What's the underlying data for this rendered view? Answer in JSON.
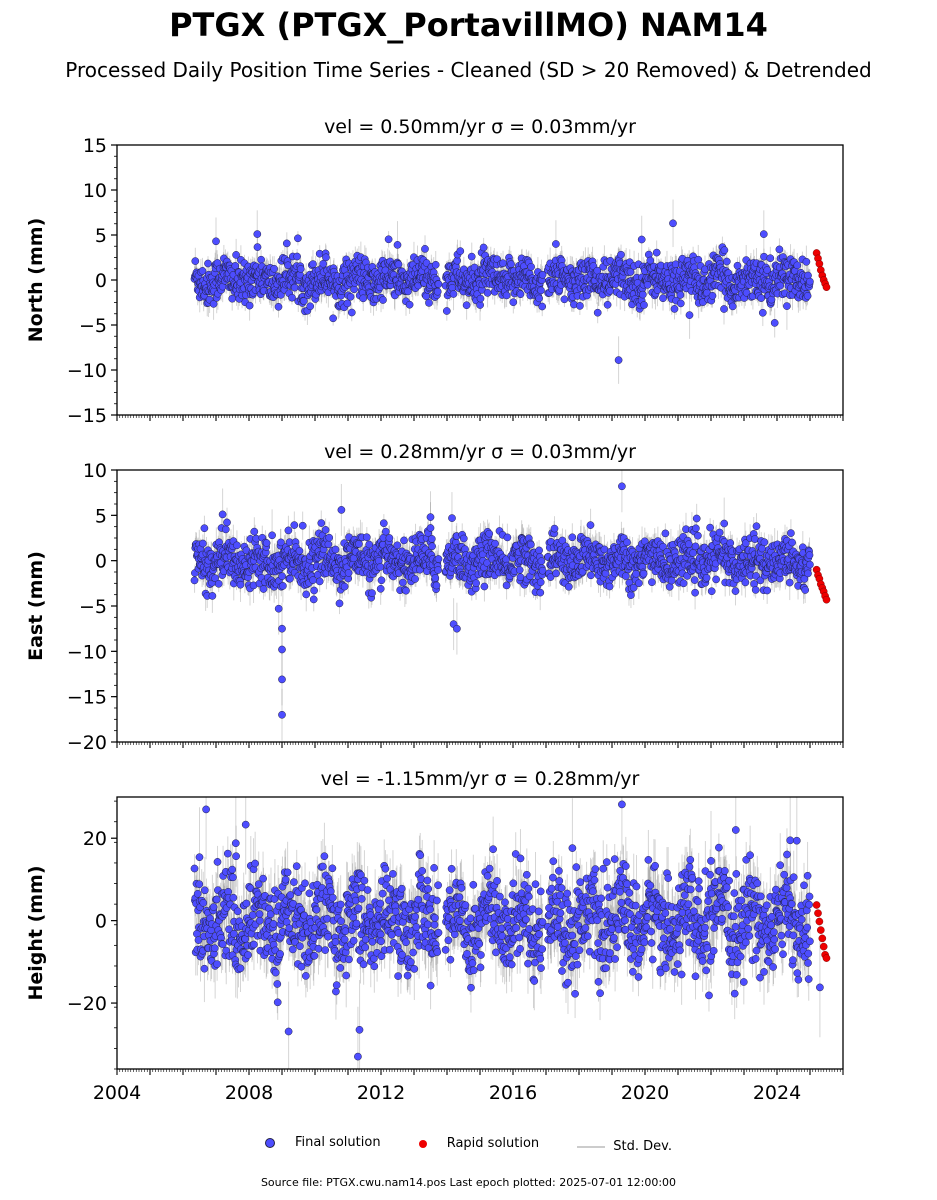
{
  "title": "PTGX (PTGX_PortavillMO) NAM14",
  "subtitle": "Processed Daily Position Time Series - Cleaned (SD > 20 Removed) & Detrended",
  "legend": {
    "final": "Final solution",
    "rapid": "Rapid solution",
    "std": "Std. Dev."
  },
  "footer": "Source file: PTGX.cwu.nam14.pos  Last epoch plotted: 2025-07-01 12:00:00",
  "colors": {
    "final": "#4d4dff",
    "rapid": "#ee0000",
    "std": "#cccccc",
    "edge": "#222244"
  },
  "chart_data": [
    {
      "type": "scatter",
      "title": "vel = 0.50mm/yr   σ = 0.03mm/yr",
      "ylabel": "North (mm)",
      "xlim": [
        2004,
        2026
      ],
      "ylim": [
        -15,
        15
      ],
      "yticks": [
        -15,
        -10,
        -5,
        0,
        5,
        10,
        15
      ],
      "data_span": [
        2006.35,
        2025.0
      ],
      "rapid_span": [
        2025.2,
        2025.5
      ],
      "gaps": [
        [
          2013.75,
          2013.95
        ],
        [
          2016.9,
          2017.05
        ]
      ],
      "series": [
        {
          "name": "Final solution",
          "spread_mm": 1.2,
          "seasonal_mm": 0.6,
          "outliers": [
            [
              2007.0,
              4.3
            ],
            [
              2008.25,
              5.1
            ],
            [
              2012.5,
              3.9
            ],
            [
              2017.3,
              4.0
            ],
            [
              2019.2,
              -8.9
            ],
            [
              2019.9,
              4.5
            ],
            [
              2020.85,
              6.3
            ],
            [
              2021.35,
              -3.9
            ],
            [
              2023.6,
              5.1
            ],
            [
              2024.3,
              -2.9
            ]
          ]
        },
        {
          "name": "Rapid solution",
          "values": [
            3.0,
            2.4,
            1.8,
            1.1,
            0.5,
            0.0,
            -0.4,
            -0.8
          ]
        }
      ]
    },
    {
      "type": "scatter",
      "title": "vel = 0.28mm/yr   σ = 0.03mm/yr",
      "ylabel": "East (mm)",
      "xlim": [
        2004,
        2026
      ],
      "ylim": [
        -20,
        10
      ],
      "yticks": [
        -20,
        -15,
        -10,
        -5,
        0,
        5,
        10
      ],
      "data_span": [
        2006.35,
        2025.0
      ],
      "rapid_span": [
        2025.2,
        2025.5
      ],
      "gaps": [
        [
          2013.75,
          2013.95
        ],
        [
          2016.9,
          2017.05
        ]
      ],
      "series": [
        {
          "name": "Final solution",
          "spread_mm": 1.3,
          "seasonal_mm": 0.8,
          "outliers": [
            [
              2007.2,
              5.1
            ],
            [
              2008.7,
              2.8
            ],
            [
              2008.9,
              -5.3
            ],
            [
              2009.0,
              -7.5
            ],
            [
              2009.0,
              -9.8
            ],
            [
              2009.0,
              -13.1
            ],
            [
              2009.0,
              -17.0
            ],
            [
              2010.8,
              5.6
            ],
            [
              2013.5,
              4.8
            ],
            [
              2013.5,
              3.6
            ],
            [
              2014.15,
              4.7
            ],
            [
              2014.2,
              -7.0
            ],
            [
              2014.3,
              -7.5
            ],
            [
              2019.3,
              8.2
            ],
            [
              2022.4,
              4.1
            ]
          ]
        },
        {
          "name": "Rapid solution",
          "values": [
            -1.0,
            -1.6,
            -2.0,
            -2.6,
            -3.0,
            -3.4,
            -3.9,
            -4.3
          ]
        }
      ]
    },
    {
      "type": "scatter",
      "title": "vel = -1.15mm/yr   σ = 0.28mm/yr",
      "ylabel": "Height (mm)",
      "xlim": [
        2004,
        2026
      ],
      "ylim": [
        -36,
        30
      ],
      "yticks": [
        -20,
        0,
        20
      ],
      "xticks": [
        2004,
        2008,
        2012,
        2016,
        2020,
        2024
      ],
      "data_span": [
        2006.35,
        2025.0
      ],
      "rapid_span": [
        2025.2,
        2025.5
      ],
      "gaps": [
        [
          2013.75,
          2013.95
        ],
        [
          2016.9,
          2017.05
        ]
      ],
      "series": [
        {
          "name": "Final solution",
          "spread_mm": 5.5,
          "seasonal_mm": 4.0,
          "outliers": [
            [
              2006.5,
              15.4
            ],
            [
              2006.7,
              27.0
            ],
            [
              2007.9,
              23.3
            ],
            [
              2007.6,
              18.8
            ],
            [
              2009.2,
              -26.9
            ],
            [
              2011.3,
              -33.0
            ],
            [
              2011.35,
              -26.5
            ],
            [
              2017.8,
              17.6
            ],
            [
              2019.3,
              28.2
            ],
            [
              2022.0,
              14.5
            ],
            [
              2022.75,
              22.0
            ],
            [
              2024.4,
              19.5
            ],
            [
              2024.6,
              19.4
            ],
            [
              2025.3,
              -16.2
            ]
          ]
        },
        {
          "name": "Rapid solution",
          "values": [
            3.8,
            1.8,
            -0.2,
            -2.3,
            -4.3,
            -6.3,
            -8.3,
            -9.1
          ]
        }
      ]
    }
  ]
}
